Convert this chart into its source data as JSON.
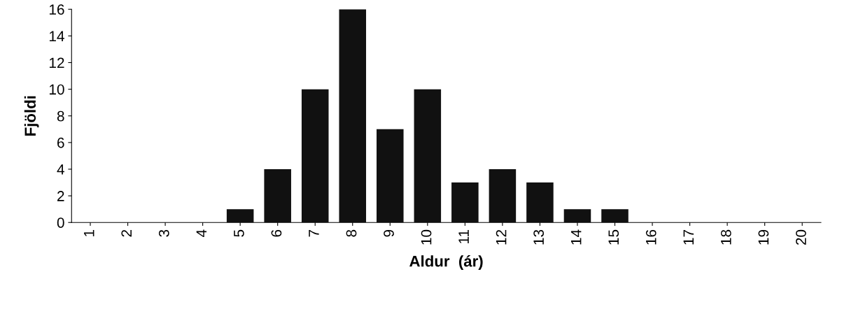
{
  "chart_data": {
    "type": "bar",
    "xlabel": "Aldur  (ár)",
    "ylabel": "Fjöldi",
    "categories": [
      "1",
      "2",
      "3",
      "4",
      "5",
      "6",
      "7",
      "8",
      "9",
      "10",
      "11",
      "12",
      "13",
      "14",
      "15",
      "16",
      "17",
      "18",
      "19",
      "20"
    ],
    "values": [
      0,
      0,
      0,
      0,
      1,
      4,
      10,
      16,
      7,
      10,
      3,
      4,
      3,
      1,
      1,
      0,
      0,
      0,
      0,
      0
    ],
    "color": "#111111",
    "ylim": [
      0,
      16
    ],
    "yticks": [
      0,
      2,
      4,
      6,
      8,
      10,
      12,
      14,
      16
    ],
    "grid": false
  }
}
